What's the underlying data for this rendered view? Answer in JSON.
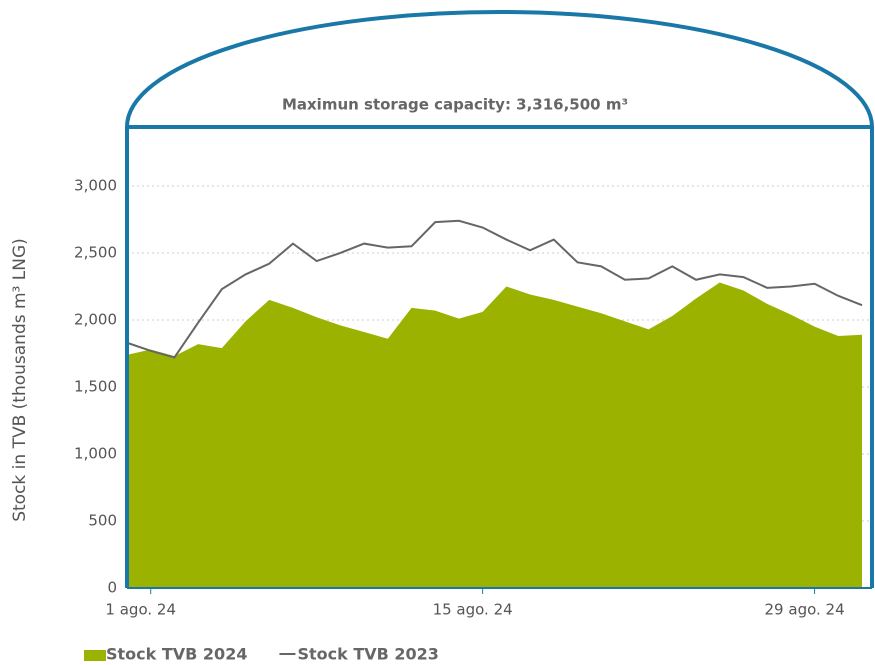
{
  "chart_data": {
    "type": "area_line",
    "annotation": "Maximun storage capacity: 3,316,500 m³",
    "y_label": "Stock in TVB (thousands m³ LNG)",
    "categories": [
      null,
      "1 ago. 24",
      null,
      null,
      null,
      null,
      null,
      null,
      null,
      null,
      null,
      null,
      null,
      null,
      null,
      "15 ago. 24",
      null,
      null,
      null,
      null,
      null,
      null,
      null,
      null,
      null,
      null,
      null,
      null,
      null,
      "29 ago. 24",
      null,
      null
    ],
    "series": [
      {
        "name": "Stock TVB 2024",
        "color": "#9bb300",
        "values": [
          1740,
          1780,
          1730,
          1820,
          1790,
          1990,
          2150,
          2090,
          2020,
          1960,
          1910,
          1860,
          2090,
          2070,
          2010,
          2060,
          2250,
          2190,
          2150,
          2100,
          2050,
          1990,
          1930,
          2030,
          2160,
          2280,
          2220,
          2120,
          2040,
          1950,
          1880,
          1890
        ]
      },
      {
        "name": "Stock TVB 2023",
        "color": "#666666",
        "values": [
          1830,
          1770,
          1720,
          1980,
          2230,
          2340,
          2420,
          2570,
          2440,
          2500,
          2570,
          2540,
          2550,
          2730,
          2740,
          2690,
          2600,
          2520,
          2600,
          2430,
          2400,
          2300,
          2310,
          2400,
          2300,
          2340,
          2320,
          2240,
          2250,
          2270,
          2180,
          2110
        ]
      }
    ],
    "ylim": [
      0,
      3440
    ],
    "yticks": [
      0,
      500,
      {
        "value": 1000,
        "label": "1,000"
      },
      {
        "value": 1500,
        "label": "1,500"
      },
      {
        "value": 2000,
        "label": "2,000"
      },
      {
        "value": 2500,
        "label": "2,500"
      },
      {
        "value": 3000,
        "label": "3,000"
      }
    ],
    "grid": true,
    "tank_color": "#1a78a8"
  }
}
